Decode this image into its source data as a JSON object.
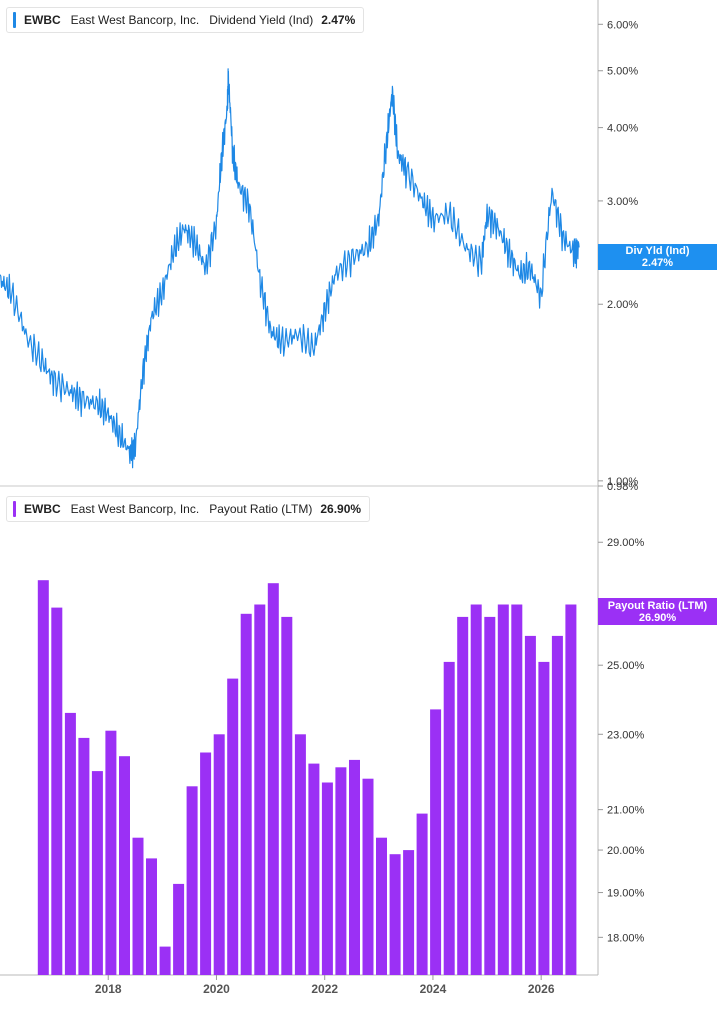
{
  "chart_data": [
    {
      "type": "line",
      "legend": {
        "ticker": "EWBC",
        "company": "East West Bancorp, Inc.",
        "metric": "Dividend Yield (Ind)",
        "value": "2.47%"
      },
      "end_tag": {
        "label": "Div Yld (Ind)",
        "value": "2.47%"
      },
      "y_scale": "log",
      "ylim": [
        0.98,
        6.6
      ],
      "y_ticks": [
        {
          "value": 6.0,
          "label": "6.00%"
        },
        {
          "value": 5.0,
          "label": "5.00%"
        },
        {
          "value": 4.0,
          "label": "4.00%"
        },
        {
          "value": 3.0,
          "label": "3.00%"
        },
        {
          "value": 2.0,
          "label": "2.00%"
        },
        {
          "value": 1.0,
          "label": "1.00%"
        },
        {
          "value": 0.98,
          "label": "0.98%"
        }
      ],
      "color": "#1e88e5",
      "series": [
        {
          "x": [
            2016.0,
            2016.2,
            2016.5,
            2016.8,
            2017.0,
            2017.3,
            2017.5,
            2017.8,
            2018.0,
            2018.2,
            2018.4,
            2018.5,
            2018.65,
            2018.8,
            2019.0,
            2019.2,
            2019.4,
            2019.6,
            2019.8,
            2020.0,
            2020.1,
            2020.2,
            2020.22,
            2020.3,
            2020.4,
            2020.6,
            2020.8,
            2021.0,
            2021.2,
            2021.5,
            2021.8,
            2022.0,
            2022.2,
            2022.5,
            2022.8,
            2023.0,
            2023.15,
            2023.25,
            2023.35,
            2023.5,
            2023.8,
            2024.0,
            2024.3,
            2024.6,
            2024.9,
            2025.0,
            2025.2,
            2025.4,
            2025.6,
            2025.8,
            2026.0,
            2026.2,
            2026.4,
            2026.6,
            2026.7
          ],
          "y": [
            2.2,
            2.1,
            1.75,
            1.58,
            1.48,
            1.42,
            1.38,
            1.35,
            1.3,
            1.2,
            1.12,
            1.14,
            1.55,
            1.9,
            2.1,
            2.45,
            2.7,
            2.55,
            2.3,
            2.75,
            3.6,
            4.3,
            4.85,
            3.6,
            3.2,
            2.95,
            2.2,
            1.8,
            1.72,
            1.78,
            1.68,
            1.95,
            2.25,
            2.4,
            2.5,
            2.8,
            3.8,
            4.6,
            3.6,
            3.4,
            3.0,
            2.8,
            2.85,
            2.5,
            2.35,
            2.85,
            2.7,
            2.45,
            2.25,
            2.3,
            2.05,
            3.1,
            2.6,
            2.45,
            2.5
          ]
        }
      ]
    },
    {
      "type": "bar",
      "legend": {
        "ticker": "EWBC",
        "company": "East West Bancorp, Inc.",
        "metric": "Payout Ratio (LTM)",
        "value": "26.90%"
      },
      "end_tag": {
        "label": "Payout Ratio (LTM)",
        "value": "26.90%"
      },
      "y_scale": "log",
      "ylim": [
        17.2,
        31.0
      ],
      "y_ticks": [
        {
          "value": 29.0,
          "label": "29.00%"
        },
        {
          "value": 25.0,
          "label": "25.00%"
        },
        {
          "value": 23.0,
          "label": "23.00%"
        },
        {
          "value": 21.0,
          "label": "21.00%"
        },
        {
          "value": 20.0,
          "label": "20.00%"
        },
        {
          "value": 19.0,
          "label": "19.00%"
        },
        {
          "value": 18.0,
          "label": "18.00%"
        }
      ],
      "color": "#9b30f5",
      "x": [
        2016.8,
        2017.05,
        2017.3,
        2017.55,
        2017.8,
        2018.05,
        2018.3,
        2018.55,
        2018.8,
        2019.05,
        2019.3,
        2019.55,
        2019.8,
        2020.05,
        2020.3,
        2020.55,
        2020.8,
        2021.05,
        2021.3,
        2021.55,
        2021.8,
        2022.05,
        2022.3,
        2022.55,
        2022.8,
        2023.05,
        2023.3,
        2023.55,
        2023.8,
        2024.05,
        2024.3,
        2024.55,
        2024.8,
        2025.05,
        2025.3,
        2025.55,
        2025.8,
        2026.05,
        2026.3,
        2026.55
      ],
      "values": [
        27.7,
        26.8,
        23.6,
        22.9,
        22.0,
        23.1,
        22.4,
        20.3,
        19.8,
        17.8,
        19.2,
        21.6,
        22.5,
        23.0,
        24.6,
        26.6,
        26.9,
        27.6,
        26.5,
        23.0,
        22.2,
        21.7,
        22.1,
        22.3,
        21.8,
        20.3,
        19.9,
        20.0,
        20.9,
        23.7,
        25.1,
        26.5,
        26.9,
        26.5,
        26.9,
        26.9,
        25.9,
        25.1,
        25.9,
        26.9
      ]
    }
  ],
  "x_axis": {
    "range": [
      2016.0,
      2027.05
    ],
    "ticks": [
      {
        "value": 2018,
        "label": "2018"
      },
      {
        "value": 2020,
        "label": "2020"
      },
      {
        "value": 2022,
        "label": "2022"
      },
      {
        "value": 2024,
        "label": "2024"
      },
      {
        "value": 2026,
        "label": "2026"
      }
    ]
  }
}
